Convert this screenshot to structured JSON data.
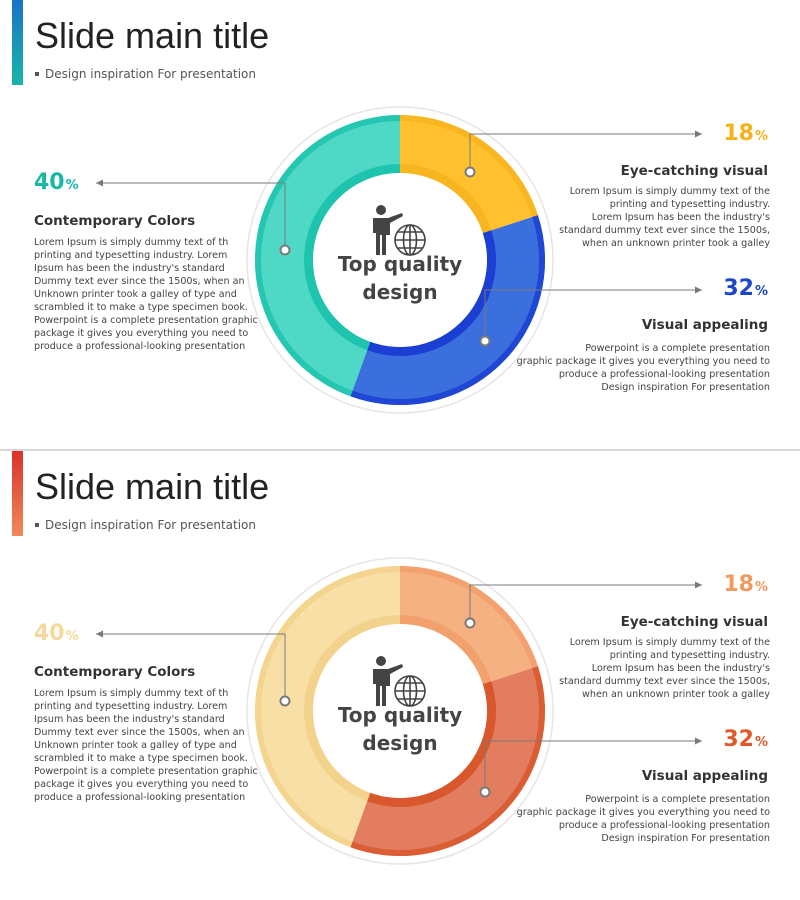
{
  "slides": [
    {
      "title": "Slide main title",
      "subtitle": "Design inspiration For presentation",
      "center_label": "Top quality design",
      "left": {
        "percent": "40",
        "percent_sign": "%",
        "heading": "Contemporary Colors",
        "text_lines": [
          "Lorem Ipsum is simply dummy text of th",
          "printing and typesetting industry. Lorem",
          "Ipsum has been the industry's standard",
          "Dummy text ever since the 1500s, when an",
          "Unknown printer took a galley of type and",
          "scrambled it to make a type specimen book.",
          "Powerpoint is a complete presentation graphic",
          "package it gives you everything you need to",
          "produce a professional-looking presentation"
        ]
      },
      "top_right": {
        "percent": "18",
        "percent_sign": "%",
        "heading": "Eye-catching visual",
        "text_lines": [
          "Lorem Ipsum is simply dummy text of the",
          "printing and typesetting industry.",
          "Lorem Ipsum has been the industry's",
          "standard dummy text ever since the 1500s,",
          "when an unknown printer took a galley"
        ]
      },
      "bottom_right": {
        "percent": "32",
        "percent_sign": "%",
        "heading": "Visual appealing",
        "text_lines": [
          "Powerpoint is a complete presentation",
          "graphic package it gives you everything you need to",
          "produce a professional-looking presentation",
          "Design inspiration For presentation"
        ]
      },
      "chart_data": {
        "type": "pie",
        "categories": [
          "Eye-catching visual",
          "Visual appealing",
          "Contemporary Colors"
        ],
        "values": [
          18,
          32,
          40
        ]
      },
      "colors": {
        "accent_top": "#1a73c9",
        "accent_bottom": "#19b6a6",
        "segment_18": "#ffc12e",
        "segment_18_inner": "#f7b51f",
        "segment_32": "#3c6fde",
        "segment_32_inner": "#1a3fd2",
        "segment_40": "#4fd8c6",
        "segment_40_inner": "#1fc4ae",
        "pct_left": "#19b8a6",
        "pct_top_right": "#f5b21a",
        "pct_bottom_right": "#1d46c8"
      }
    },
    {
      "title": "Slide main title",
      "subtitle": "Design inspiration For presentation",
      "center_label": "Top quality design",
      "left": {
        "percent": "40",
        "percent_sign": "%",
        "heading": "Contemporary Colors",
        "text_lines": [
          "Lorem Ipsum is simply dummy text of th",
          "printing and typesetting industry. Lorem",
          "Ipsum has been the industry's standard",
          "Dummy text ever since the 1500s, when an",
          "Unknown printer took a galley of type and",
          "scrambled it to make a type specimen book.",
          "Powerpoint is a complete presentation graphic",
          "package it gives you everything you need to",
          "produce a professional-looking presentation"
        ]
      },
      "top_right": {
        "percent": "18",
        "percent_sign": "%",
        "heading": "Eye-catching visual",
        "text_lines": [
          "Lorem Ipsum is simply dummy text of the",
          "printing and typesetting industry.",
          "Lorem Ipsum has been the industry's",
          "standard dummy text ever since the 1500s,",
          "when an unknown printer took a galley"
        ]
      },
      "bottom_right": {
        "percent": "32",
        "percent_sign": "%",
        "heading": "Visual appealing",
        "text_lines": [
          "Powerpoint is a complete presentation",
          "graphic package it gives you everything you need to",
          "produce a professional-looking presentation",
          "Design inspiration For presentation"
        ]
      },
      "chart_data": {
        "type": "pie",
        "categories": [
          "Eye-catching visual",
          "Visual appealing",
          "Contemporary Colors"
        ],
        "values": [
          18,
          32,
          40
        ]
      },
      "colors": {
        "accent_top": "#d9322a",
        "accent_bottom": "#f08a5a",
        "segment_18": "#f6b183",
        "segment_18_inner": "#f2a06c",
        "segment_32": "#e27d5f",
        "segment_32_inner": "#d8572c",
        "segment_40": "#f8dfa6",
        "segment_40_inner": "#f3d38b",
        "pct_left": "#f6d99a",
        "pct_top_right": "#f09a5e",
        "pct_bottom_right": "#de5a2b"
      }
    }
  ]
}
